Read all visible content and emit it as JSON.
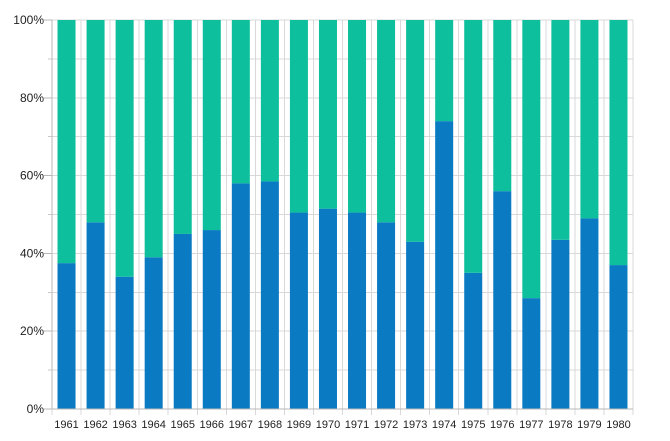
{
  "chart_data": {
    "type": "bar",
    "stacked": true,
    "normalized": true,
    "title": "",
    "xlabel": "",
    "ylabel": "",
    "ylim": [
      0,
      100
    ],
    "yticks": [
      "0%",
      "20%",
      "40%",
      "60%",
      "80%",
      "100%"
    ],
    "grid": true,
    "legend": "none",
    "categories": [
      "1961",
      "1962",
      "1963",
      "1964",
      "1965",
      "1966",
      "1967",
      "1968",
      "1969",
      "1970",
      "1971",
      "1972",
      "1973",
      "1974",
      "1975",
      "1976",
      "1977",
      "1978",
      "1979",
      "1980"
    ],
    "series": [
      {
        "color": "#0a7bc2",
        "values": [
          37.5,
          48,
          34,
          39,
          45,
          46,
          58,
          58.5,
          50.5,
          51.5,
          50.5,
          48,
          43,
          74,
          35,
          56,
          28.5,
          43.5,
          49,
          37
        ]
      },
      {
        "color": "#0dbf9d",
        "values": [
          62.5,
          52,
          66,
          61,
          55,
          54,
          42,
          41.5,
          49.5,
          48.5,
          49.5,
          52,
          57,
          26,
          65,
          44,
          71.5,
          56.5,
          51,
          63
        ]
      }
    ]
  }
}
